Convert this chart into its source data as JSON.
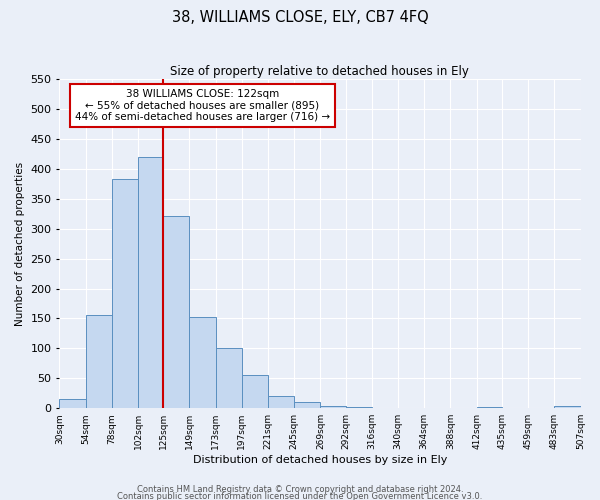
{
  "title": "38, WILLIAMS CLOSE, ELY, CB7 4FQ",
  "subtitle": "Size of property relative to detached houses in Ely",
  "xlabel": "Distribution of detached houses by size in Ely",
  "ylabel": "Number of detached properties",
  "bin_edges": [
    30,
    54,
    78,
    102,
    125,
    149,
    173,
    197,
    221,
    245,
    269,
    292,
    316,
    340,
    364,
    388,
    412,
    435,
    459,
    483,
    507
  ],
  "bar_heights": [
    15,
    155,
    383,
    420,
    322,
    153,
    100,
    55,
    20,
    10,
    3,
    2,
    1,
    1,
    1,
    1,
    2,
    1,
    1,
    3
  ],
  "bar_color": "#c5d8f0",
  "bar_edge_color": "#5a8fc0",
  "bg_color": "#eaeff8",
  "grid_color": "#ffffff",
  "vline_x": 125,
  "vline_color": "#cc0000",
  "annot_line1": "38 WILLIAMS CLOSE: 122sqm",
  "annot_line2": "← 55% of detached houses are smaller (895)",
  "annot_line3": "44% of semi-detached houses are larger (716) →",
  "annotation_box_color": "#cc0000",
  "ylim": [
    0,
    550
  ],
  "yticks": [
    0,
    50,
    100,
    150,
    200,
    250,
    300,
    350,
    400,
    450,
    500,
    550
  ],
  "xticklabels": [
    "30sqm",
    "54sqm",
    "78sqm",
    "102sqm",
    "125sqm",
    "149sqm",
    "173sqm",
    "197sqm",
    "221sqm",
    "245sqm",
    "269sqm",
    "292sqm",
    "316sqm",
    "340sqm",
    "364sqm",
    "388sqm",
    "412sqm",
    "435sqm",
    "459sqm",
    "483sqm",
    "507sqm"
  ],
  "footnote1": "Contains HM Land Registry data © Crown copyright and database right 2024.",
  "footnote2": "Contains public sector information licensed under the Open Government Licence v3.0."
}
